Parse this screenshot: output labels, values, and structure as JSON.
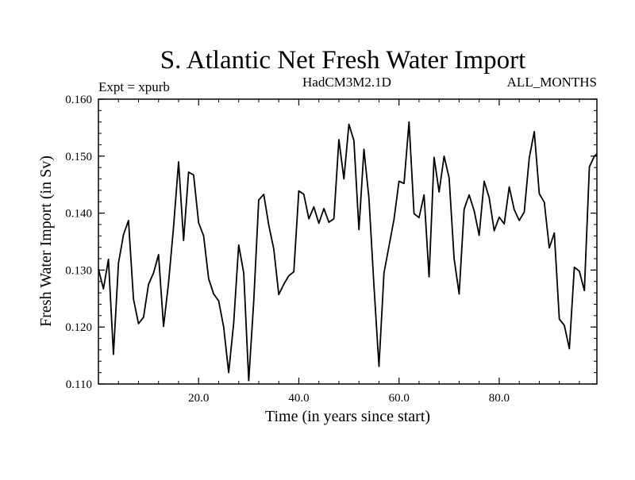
{
  "chart_data": {
    "type": "line",
    "title": "S. Atlantic Net Fresh Water Import",
    "subtitle_left": "Expt = xpurb",
    "subtitle_center": "HadCM3M2.1D",
    "subtitle_right": "ALL_MONTHS",
    "xlabel": "Time (in years since start)",
    "ylabel": "Fresh Water Import (in Sv)",
    "xlim": [
      0,
      99.5
    ],
    "ylim": [
      0.11,
      0.16
    ],
    "x_ticks": [
      20,
      40,
      60,
      80
    ],
    "x_tick_labels": [
      "20.0",
      "40.0",
      "60.0",
      "80.0"
    ],
    "y_ticks": [
      0.11,
      0.12,
      0.13,
      0.14,
      0.15,
      0.16
    ],
    "y_tick_labels": [
      "0.110",
      "0.120",
      "0.130",
      "0.140",
      "0.150",
      "0.160"
    ],
    "grid": false,
    "line_color": "#000000",
    "series": [
      {
        "name": "Fresh Water Import",
        "x": [
          0,
          1,
          2,
          3,
          4,
          5,
          6,
          7,
          8,
          9,
          10,
          11,
          12,
          13,
          14,
          15,
          16,
          17,
          18,
          19,
          20,
          21,
          22,
          23,
          24,
          25,
          26,
          27,
          28,
          29,
          30,
          31,
          32,
          33,
          34,
          35,
          36,
          37,
          38,
          39,
          40,
          41,
          42,
          43,
          44,
          45,
          46,
          47,
          48,
          49,
          50,
          51,
          52,
          53,
          54,
          55,
          56,
          57,
          58,
          59,
          60,
          61,
          62,
          63,
          64,
          65,
          66,
          67,
          68,
          69,
          70,
          71,
          72,
          73,
          74,
          75,
          76,
          77,
          78,
          79,
          80,
          81,
          82,
          83,
          84,
          85,
          86,
          87,
          88,
          89,
          90,
          91,
          92,
          93,
          94,
          95,
          96,
          97,
          98,
          99,
          99.5
        ],
        "values": [
          0.1302,
          0.1267,
          0.1319,
          0.1152,
          0.1312,
          0.1362,
          0.1387,
          0.1249,
          0.1206,
          0.1217,
          0.1275,
          0.1295,
          0.1327,
          0.1201,
          0.1278,
          0.1376,
          0.149,
          0.1352,
          0.1472,
          0.1467,
          0.1383,
          0.136,
          0.1285,
          0.1258,
          0.1246,
          0.12,
          0.112,
          0.1207,
          0.1344,
          0.1295,
          0.1106,
          0.1245,
          0.1423,
          0.1433,
          0.1379,
          0.1337,
          0.1257,
          0.1275,
          0.129,
          0.1297,
          0.1439,
          0.1433,
          0.139,
          0.1411,
          0.1382,
          0.1408,
          0.1384,
          0.139,
          0.1529,
          0.146,
          0.1556,
          0.1527,
          0.1371,
          0.1512,
          0.1426,
          0.1272,
          0.1131,
          0.1295,
          0.1342,
          0.1389,
          0.1456,
          0.1452,
          0.156,
          0.1399,
          0.1392,
          0.1432,
          0.1288,
          0.1498,
          0.1437,
          0.15,
          0.1462,
          0.132,
          0.1258,
          0.1407,
          0.1432,
          0.1404,
          0.1361,
          0.1456,
          0.1427,
          0.1369,
          0.1393,
          0.1381,
          0.1446,
          0.1406,
          0.1387,
          0.1402,
          0.1497,
          0.1543,
          0.1434,
          0.1419,
          0.1339,
          0.1365,
          0.1214,
          0.1203,
          0.1162,
          0.1305,
          0.1298,
          0.1264,
          0.1481,
          0.15,
          0.1504
        ]
      }
    ]
  }
}
